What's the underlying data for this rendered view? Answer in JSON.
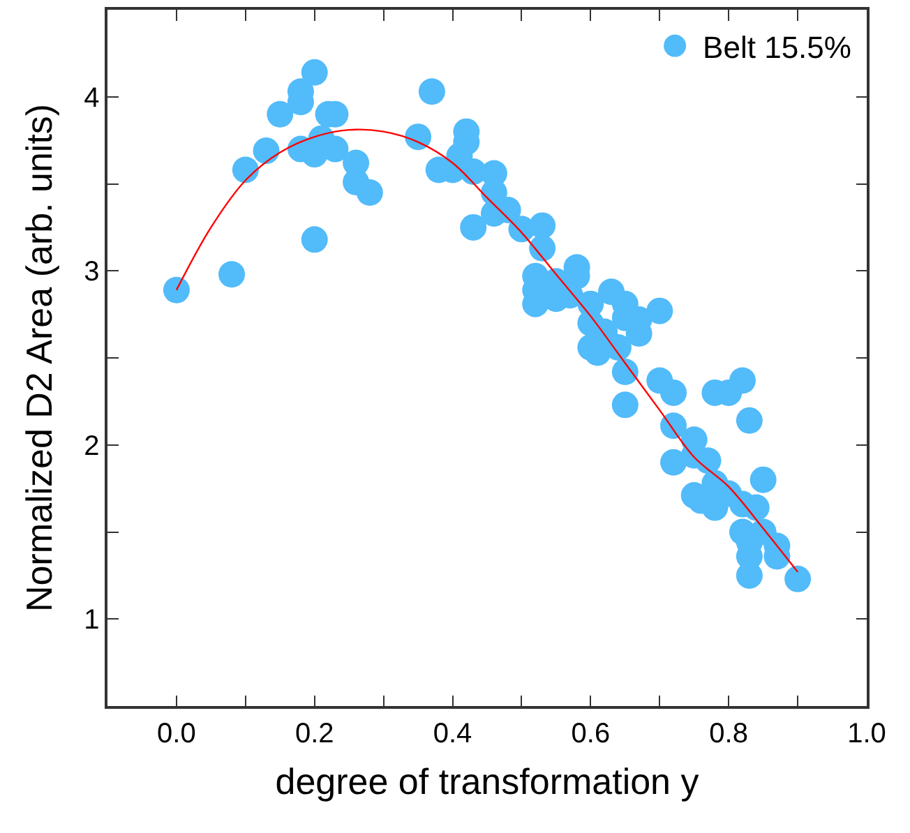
{
  "chart_data": {
    "type": "scatter",
    "xlabel": "degree of transformation y",
    "ylabel": "Normalized D2 Area (arb. units)",
    "xlim": [
      -0.1,
      1.0
    ],
    "ylim": [
      0.5,
      4.5
    ],
    "xticks": [
      {
        "value": 0.0,
        "label": "0.0"
      },
      {
        "value": 0.1,
        "label": null
      },
      {
        "value": 0.2,
        "label": "0.2"
      },
      {
        "value": 0.3,
        "label": null
      },
      {
        "value": 0.4,
        "label": "0.4"
      },
      {
        "value": 0.5,
        "label": null
      },
      {
        "value": 0.6,
        "label": "0.6"
      },
      {
        "value": 0.7,
        "label": null
      },
      {
        "value": 0.8,
        "label": "0.8"
      },
      {
        "value": 0.9,
        "label": null
      },
      {
        "value": 1.0,
        "label": "1.0"
      }
    ],
    "yticks": [
      {
        "value": 1,
        "label": "1"
      },
      {
        "value": 1.5,
        "label": null
      },
      {
        "value": 2,
        "label": "2"
      },
      {
        "value": 2.5,
        "label": null
      },
      {
        "value": 3,
        "label": "3"
      },
      {
        "value": 3.5,
        "label": null
      },
      {
        "value": 4,
        "label": "4"
      }
    ],
    "legend": "top right",
    "series": [
      {
        "name": "Belt 15.5%",
        "marker": "circle",
        "color": "#52bbfa",
        "x": [
          0.0,
          0.08,
          0.1,
          0.13,
          0.15,
          0.18,
          0.18,
          0.2,
          0.18,
          0.2,
          0.2,
          0.22,
          0.23,
          0.21,
          0.23,
          0.26,
          0.26,
          0.28,
          0.35,
          0.37,
          0.38,
          0.4,
          0.42,
          0.42,
          0.41,
          0.43,
          0.43,
          0.46,
          0.46,
          0.46,
          0.48,
          0.5,
          0.53,
          0.53,
          0.52,
          0.52,
          0.52,
          0.55,
          0.55,
          0.58,
          0.58,
          0.57,
          0.6,
          0.6,
          0.6,
          0.62,
          0.61,
          0.63,
          0.65,
          0.65,
          0.67,
          0.67,
          0.64,
          0.65,
          0.65,
          0.7,
          0.7,
          0.72,
          0.72,
          0.75,
          0.72,
          0.75,
          0.77,
          0.78,
          0.8,
          0.82,
          0.83,
          0.75,
          0.76,
          0.78,
          0.78,
          0.8,
          0.82,
          0.84,
          0.82,
          0.83,
          0.83,
          0.85,
          0.87,
          0.87,
          0.85,
          0.83,
          0.9
        ],
        "values": [
          2.89,
          2.98,
          3.58,
          3.69,
          3.9,
          3.97,
          4.03,
          4.14,
          3.7,
          3.67,
          3.18,
          3.9,
          3.9,
          3.76,
          3.7,
          3.62,
          3.51,
          3.45,
          3.77,
          4.03,
          3.58,
          3.58,
          3.8,
          3.74,
          3.66,
          3.57,
          3.25,
          3.56,
          3.45,
          3.33,
          3.35,
          3.24,
          3.26,
          3.13,
          2.97,
          2.89,
          2.81,
          2.94,
          2.84,
          3.02,
          2.97,
          2.86,
          2.81,
          2.7,
          2.56,
          2.65,
          2.53,
          2.88,
          2.81,
          2.73,
          2.72,
          2.64,
          2.56,
          2.42,
          2.23,
          2.77,
          2.37,
          2.3,
          2.11,
          2.03,
          1.9,
          1.94,
          1.91,
          2.3,
          2.3,
          2.37,
          2.14,
          1.71,
          1.68,
          1.78,
          1.64,
          1.72,
          1.66,
          1.64,
          1.5,
          1.44,
          1.36,
          1.5,
          1.42,
          1.36,
          1.8,
          1.25,
          1.23
        ]
      },
      {
        "type": "line",
        "color": "#ff0000",
        "line_style": "solid",
        "marker": "none",
        "x": [
          0,
          0.05,
          0.1,
          0.15,
          0.2,
          0.25,
          0.3,
          0.35,
          0.4,
          0.45,
          0.5,
          0.55,
          0.6,
          0.65,
          0.7,
          0.75,
          0.8,
          0.85,
          0.9
        ],
        "values": [
          2.89,
          3.25,
          3.52,
          3.68,
          3.77,
          3.81,
          3.8,
          3.74,
          3.62,
          3.42,
          3.22,
          2.98,
          2.74,
          2.47,
          2.2,
          1.93,
          1.76,
          1.52,
          1.27
        ]
      }
    ]
  }
}
